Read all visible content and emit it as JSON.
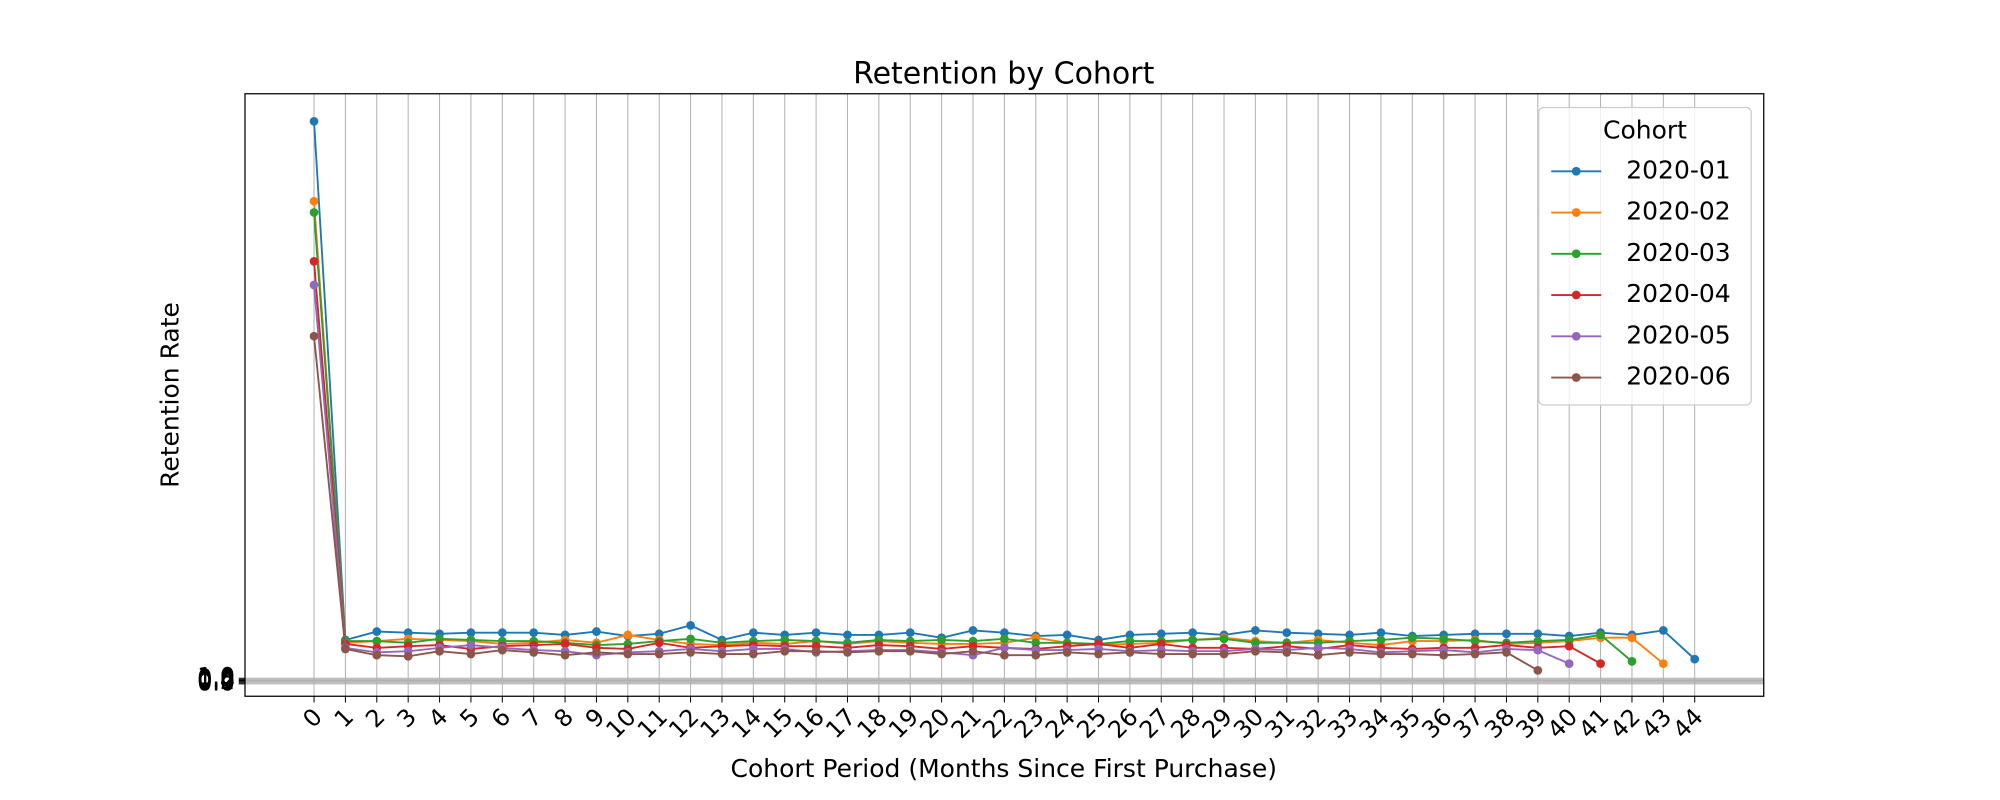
{
  "chart_data": {
    "type": "line",
    "title": "Retention by Cohort",
    "xlabel": "Cohort Period (Months Since First Purchase)",
    "ylabel": "Retention Rate",
    "legend_title": "Cohort",
    "legend": "upper right",
    "grid": true,
    "xlim": [
      -2.2,
      46.2
    ],
    "ylim": [
      -2.2,
      104.9
    ],
    "xticks": [
      0,
      1,
      2,
      3,
      4,
      5,
      6,
      7,
      8,
      9,
      10,
      11,
      12,
      13,
      14,
      15,
      16,
      17,
      18,
      19,
      20,
      21,
      22,
      23,
      24,
      25,
      26,
      27,
      28,
      29,
      30,
      31,
      32,
      33,
      34,
      35,
      36,
      37,
      38,
      39,
      40,
      41,
      42,
      43,
      44
    ],
    "yticks": [
      {
        "value": 0,
        "label": "0.0"
      },
      0.2,
      0.4,
      0.6,
      0.8,
      {
        "value": 1,
        "label": "1.0"
      }
    ],
    "x": [
      0,
      1,
      2,
      3,
      4,
      5,
      6,
      7,
      8,
      9,
      10,
      11,
      12,
      13,
      14,
      15,
      16,
      17,
      18,
      19,
      20,
      21,
      22,
      23,
      24,
      25,
      26,
      27,
      28,
      29,
      30,
      31,
      32,
      33,
      34,
      35,
      36,
      37,
      38,
      39,
      40,
      41,
      42,
      43,
      44
    ],
    "series": [
      {
        "name": "2020-01",
        "color": "#1f77b4",
        "values": [
          100,
          7.8,
          9.3,
          9.1,
          8.9,
          9.1,
          9.1,
          9.1,
          8.7,
          9.3,
          8.5,
          8.9,
          10.4,
          7.8,
          9.1,
          8.7,
          9.1,
          8.7,
          8.7,
          9.1,
          8.2,
          9.5,
          9.1,
          8.5,
          8.7,
          7.8,
          8.7,
          8.9,
          9.1,
          8.7,
          9.5,
          9.1,
          8.9,
          8.7,
          9.1,
          8.5,
          8.7,
          8.9,
          8.9,
          8.9,
          8.5,
          9.1,
          8.7,
          9.5,
          4.4
        ]
      },
      {
        "name": "2020-02",
        "color": "#ff7f0e",
        "values": [
          85.8,
          7.3,
          7.6,
          8.0,
          7.8,
          7.6,
          7.1,
          7.3,
          7.8,
          7.3,
          8.7,
          7.8,
          7.1,
          6.9,
          7.3,
          7.1,
          7.6,
          7.1,
          7.6,
          7.3,
          7.1,
          7.1,
          7.3,
          8.2,
          7.3,
          6.9,
          7.1,
          7.3,
          7.8,
          8.2,
          7.6,
          7.3,
          7.8,
          7.3,
          6.9,
          7.6,
          7.6,
          7.8,
          7.1,
          7.3,
          7.6,
          8.2,
          8.2,
          3.6,
          null
        ]
      },
      {
        "name": "2020-03",
        "color": "#2ca02c",
        "values": [
          83.8,
          7.6,
          7.6,
          7.3,
          8.0,
          7.8,
          7.6,
          7.6,
          7.3,
          6.9,
          7.1,
          7.6,
          8.0,
          7.3,
          7.6,
          7.8,
          7.6,
          7.3,
          7.8,
          7.6,
          7.8,
          7.6,
          8.0,
          7.3,
          7.3,
          7.1,
          7.6,
          7.6,
          7.8,
          8.0,
          7.3,
          7.3,
          7.3,
          7.6,
          7.8,
          8.2,
          8.0,
          7.6,
          7.3,
          7.6,
          7.8,
          8.7,
          4.0,
          null,
          null
        ]
      },
      {
        "name": "2020-04",
        "color": "#d62728",
        "values": [
          75.1,
          7.1,
          6.4,
          6.7,
          6.9,
          6.2,
          6.7,
          6.9,
          7.1,
          6.4,
          6.2,
          7.3,
          6.4,
          6.7,
          6.9,
          6.7,
          6.7,
          6.4,
          6.9,
          6.7,
          6.2,
          6.7,
          6.4,
          6.2,
          6.7,
          7.1,
          6.4,
          7.1,
          6.4,
          6.4,
          6.2,
          6.7,
          6.2,
          6.9,
          6.4,
          6.2,
          6.4,
          6.4,
          6.9,
          6.4,
          6.7,
          3.6,
          null,
          null,
          null
        ]
      },
      {
        "name": "2020-05",
        "color": "#9467bd",
        "values": [
          70.9,
          6.4,
          5.6,
          5.8,
          6.4,
          6.9,
          6.4,
          6.0,
          5.8,
          5.1,
          5.6,
          5.8,
          6.2,
          5.8,
          6.2,
          6.2,
          5.6,
          5.8,
          6.0,
          6.0,
          5.6,
          5.1,
          6.4,
          6.0,
          6.0,
          6.2,
          5.8,
          6.0,
          5.8,
          5.8,
          6.2,
          6.0,
          6.4,
          6.2,
          5.6,
          5.8,
          6.0,
          5.6,
          6.2,
          6.0,
          3.6,
          null,
          null,
          null,
          null
        ]
      },
      {
        "name": "2020-06",
        "color": "#8c564b",
        "values": [
          61.8,
          6.2,
          5.1,
          4.9,
          5.8,
          5.3,
          6.0,
          5.6,
          5.1,
          5.6,
          5.3,
          5.3,
          5.6,
          5.3,
          5.3,
          5.8,
          5.8,
          5.6,
          5.8,
          5.8,
          5.3,
          5.8,
          5.1,
          5.1,
          5.6,
          5.3,
          5.6,
          5.3,
          5.3,
          5.3,
          5.8,
          5.6,
          5.1,
          5.6,
          5.3,
          5.3,
          5.1,
          5.3,
          5.6,
          2.4,
          null,
          null,
          null,
          null,
          null
        ]
      }
    ]
  }
}
